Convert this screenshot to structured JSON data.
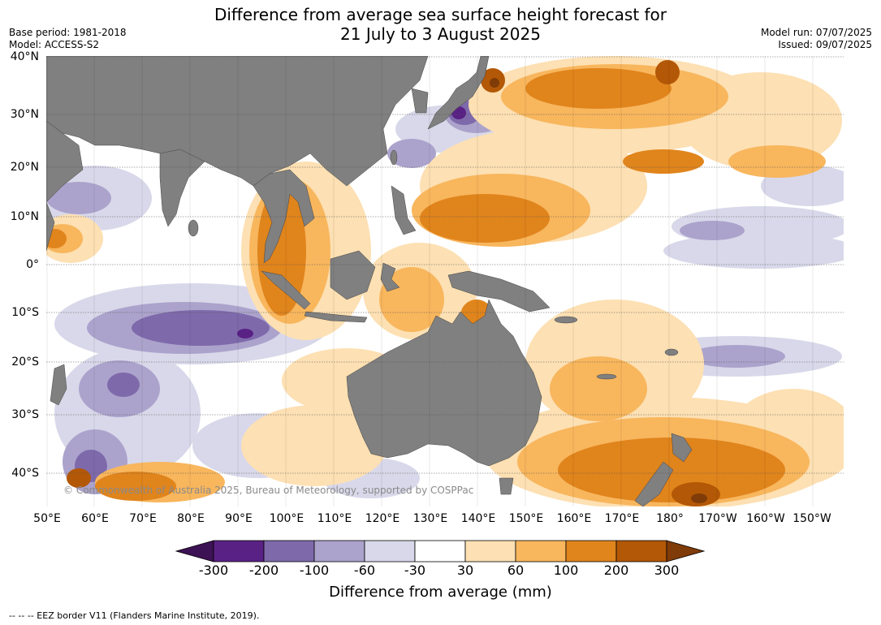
{
  "title": {
    "line1": "Difference from average sea surface height forecast for",
    "line2": "21 July to 3 August 2025"
  },
  "meta": {
    "base_period": "Base period: 1981-2018",
    "model": "Model: ACCESS-S2",
    "model_run": "Model run: 07/07/2025",
    "issued": "Issued: 09/07/2025"
  },
  "map": {
    "lat_labels": [
      "40°N",
      "30°N",
      "20°N",
      "10°N",
      "0°",
      "10°S",
      "20°S",
      "30°S",
      "40°S"
    ],
    "lon_labels": [
      "50°E",
      "60°E",
      "70°E",
      "80°E",
      "90°E",
      "100°E",
      "110°E",
      "120°E",
      "130°E",
      "140°E",
      "150°E",
      "160°E",
      "170°E",
      "180°",
      "170°W",
      "160°W",
      "150°W"
    ],
    "land_color": "#808080",
    "ocean_color": "#ffffff",
    "copyright": "© Commonwealth of Australia 2025, Bureau of Meteorology, supported by COSPPac"
  },
  "colorbar": {
    "tick_labels": [
      "-300",
      "-200",
      "-100",
      "-60",
      "-30",
      "30",
      "60",
      "100",
      "200",
      "300"
    ],
    "colors": [
      "#3d1255",
      "#5a2185",
      "#7e6aab",
      "#aca3cc",
      "#d8d8ea",
      "#ffffff",
      "#fde0b3",
      "#f8b65d",
      "#e0841c",
      "#b35806",
      "#7f3b08"
    ],
    "title": "Difference from average (mm)"
  },
  "footnote": "--  --  -- EEZ border V11 (Flanders Marine Institute, 2019)."
}
